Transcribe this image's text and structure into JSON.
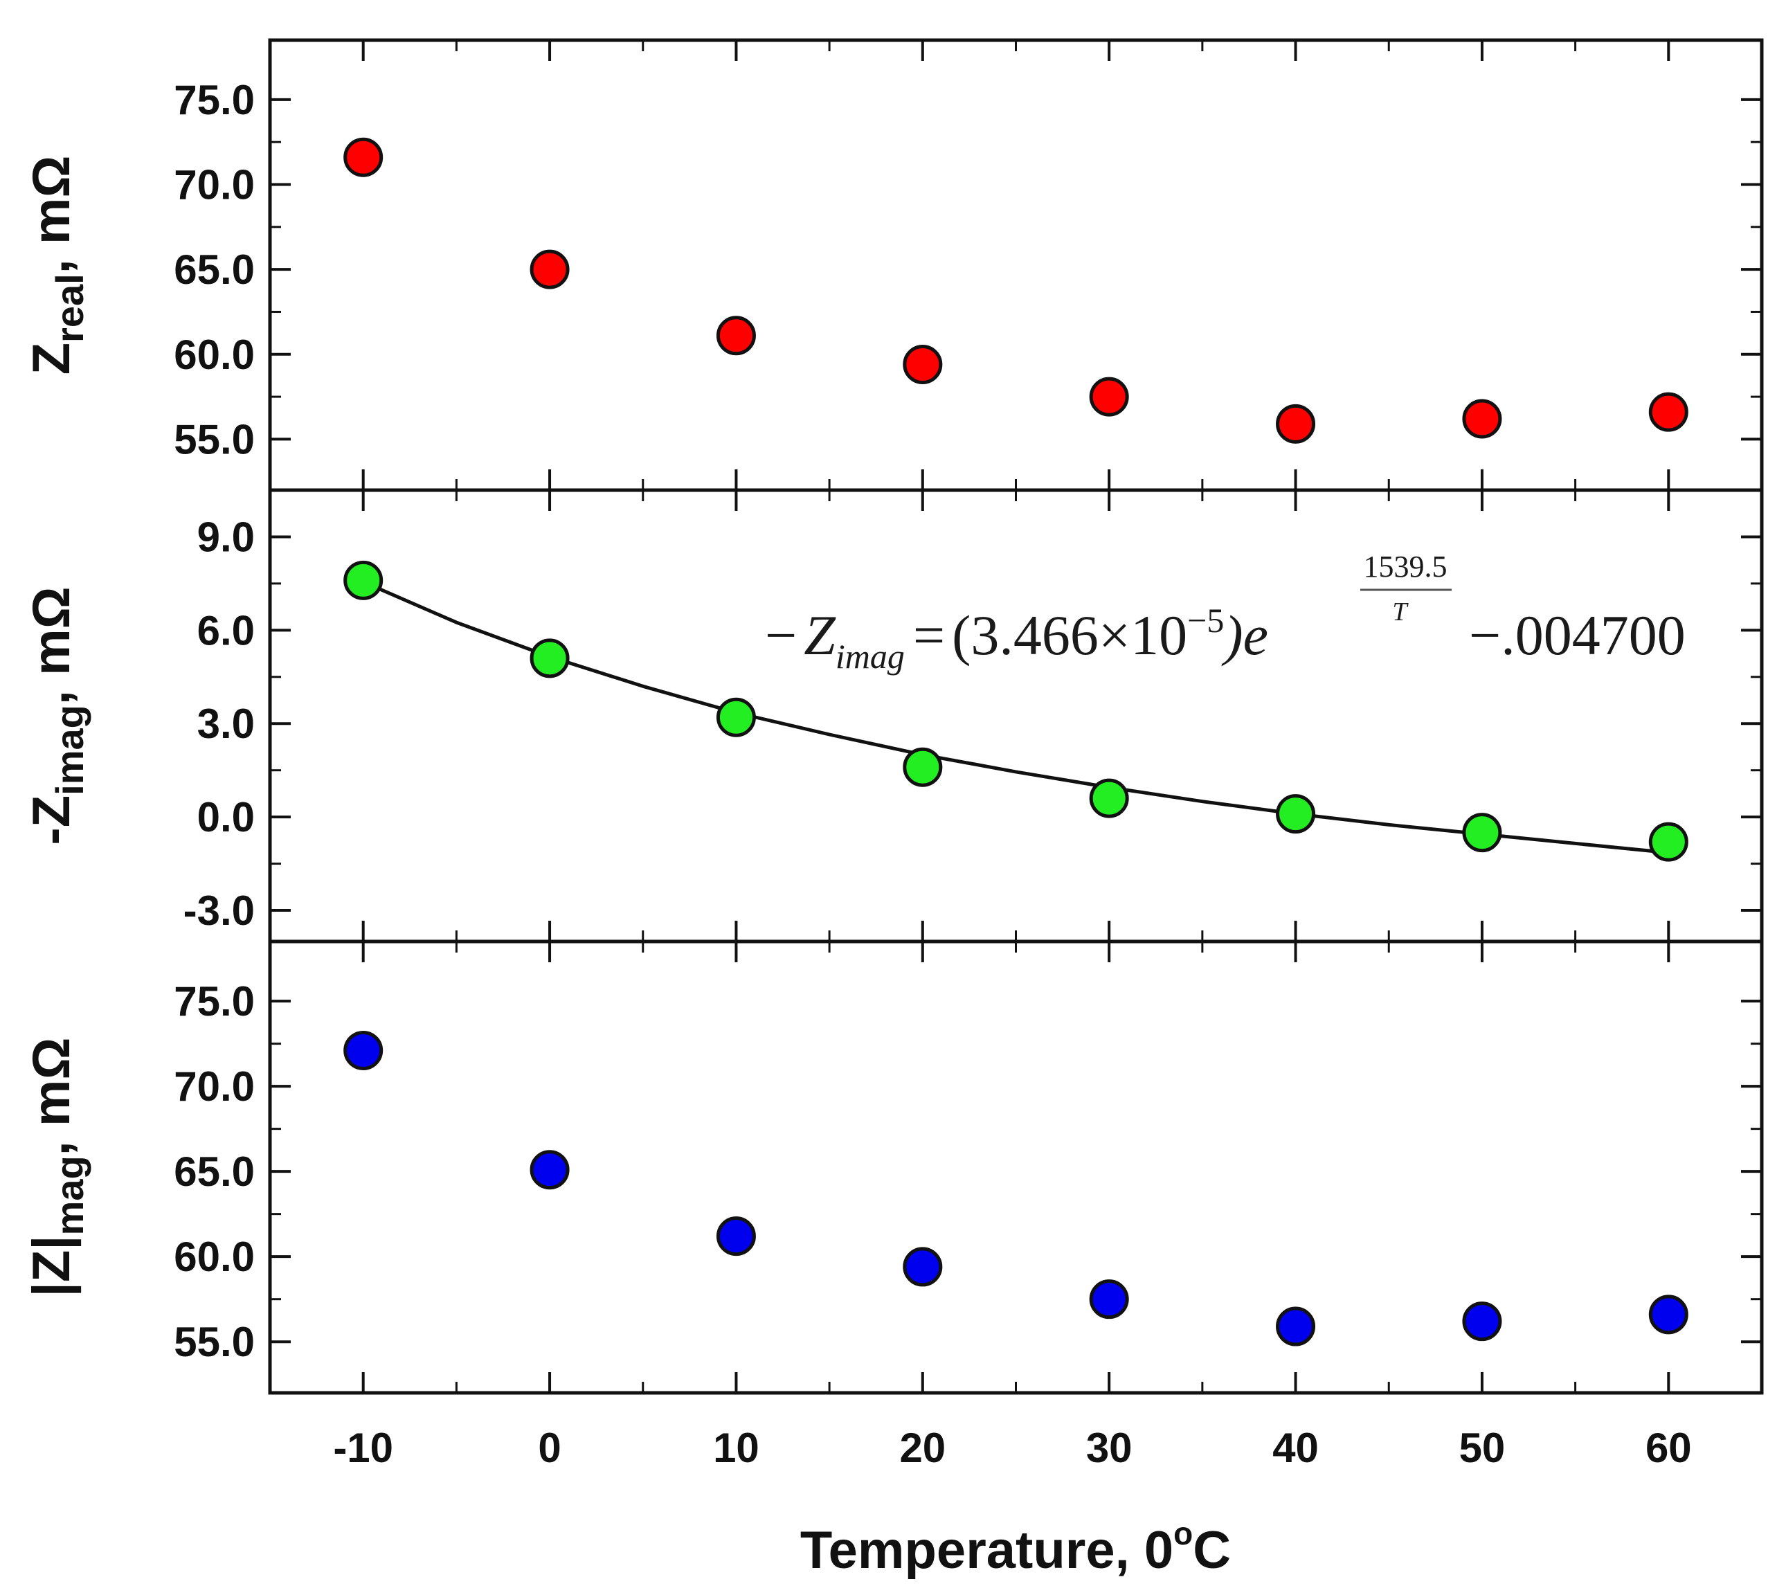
{
  "chart_data": [
    {
      "type": "scatter",
      "panel": "top",
      "ylabel_main": "Z",
      "ylabel_sub": "real",
      "ylabel_rest": ", mΩ",
      "ylim": [
        52.0,
        78.5
      ],
      "yticks": [
        55.0,
        60.0,
        65.0,
        70.0,
        75.0
      ],
      "ytick_labels": [
        "55.0",
        "60.0",
        "65.0",
        "70.0",
        "75.0"
      ],
      "color": "#ff0000",
      "series": [
        {
          "name": "Z real",
          "x": [
            -10,
            0,
            10,
            20,
            30,
            40,
            50,
            60
          ],
          "values": [
            71.6,
            65.0,
            61.1,
            59.4,
            57.5,
            55.9,
            56.2,
            56.6
          ]
        }
      ]
    },
    {
      "type": "scatter",
      "panel": "middle",
      "ylabel_main": "-Z",
      "ylabel_sub": "imag",
      "ylabel_rest": ", mΩ",
      "ylim": [
        -4.0,
        10.5
      ],
      "yticks": [
        -3.0,
        0.0,
        3.0,
        6.0,
        9.0
      ],
      "ytick_labels": [
        "-3.0",
        "0.0",
        "3.0",
        "6.0",
        "9.0"
      ],
      "color": "#22ee22",
      "series": [
        {
          "name": "-Z imag",
          "x": [
            -10,
            0,
            10,
            20,
            30,
            40,
            50,
            60
          ],
          "values": [
            7.6,
            5.1,
            3.2,
            1.6,
            0.6,
            0.1,
            -0.5,
            -0.8
          ]
        }
      ],
      "fit": {
        "x": [
          -10,
          -5,
          0,
          5,
          10,
          15,
          20,
          25,
          30,
          35,
          40,
          45,
          50,
          55,
          60
        ],
        "values": [
          7.55,
          6.25,
          5.15,
          4.2,
          3.35,
          2.65,
          2.0,
          1.45,
          0.95,
          0.5,
          0.1,
          -0.25,
          -0.55,
          -0.85,
          -1.15
        ]
      },
      "equation": {
        "lhs_sign": "−",
        "lhs_var": "Z",
        "lhs_sub": "imag",
        "equals": "=",
        "coef": "(3.466×10",
        "coef_exp": "−5",
        "coef_close": ")e",
        "exp_num": "1539.5",
        "exp_den": "T",
        "tail": "−.004700"
      }
    },
    {
      "type": "scatter",
      "panel": "bottom",
      "ylabel_main": "|Z|",
      "ylabel_sub": "mag",
      "ylabel_rest": ", mΩ",
      "ylim": [
        52.0,
        78.5
      ],
      "yticks": [
        55.0,
        60.0,
        65.0,
        70.0,
        75.0
      ],
      "ytick_labels": [
        "55.0",
        "60.0",
        "65.0",
        "70.0",
        "75.0"
      ],
      "color": "#0000ee",
      "series": [
        {
          "name": "|Z| mag",
          "x": [
            -10,
            0,
            10,
            20,
            30,
            40,
            50,
            60
          ],
          "values": [
            72.1,
            65.1,
            61.2,
            59.4,
            57.5,
            55.9,
            56.2,
            56.6
          ]
        }
      ]
    }
  ],
  "x_axis": {
    "xlim": [
      -15,
      65
    ],
    "xticks": [
      -10,
      0,
      10,
      20,
      30,
      40,
      50,
      60
    ],
    "xtick_labels": [
      "-10",
      "0",
      "10",
      "20",
      "30",
      "40",
      "50",
      "60"
    ],
    "label_main": "Temperature, 0",
    "label_sup": "o",
    "label_tail": "C"
  }
}
